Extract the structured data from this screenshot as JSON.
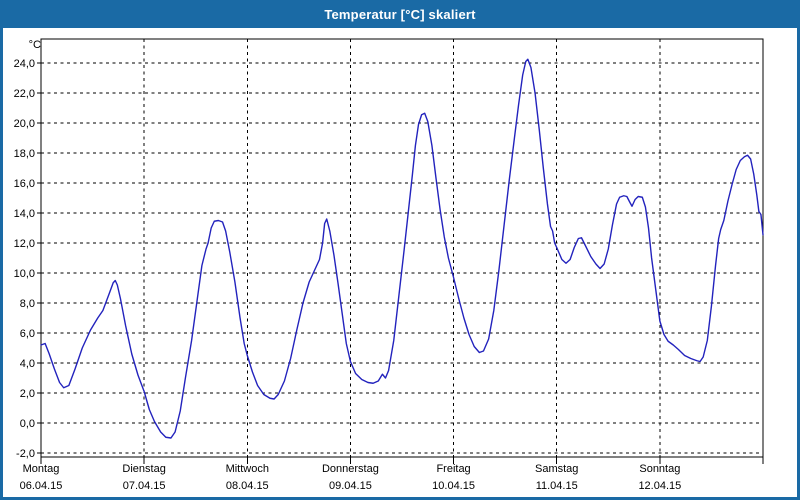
{
  "window": {
    "title": "Temperatur [°C] skaliert",
    "title_bar_color": "#1a6aa5",
    "border_color": "#1a6aa5",
    "background": "#ffffff"
  },
  "colors": {
    "grid": "#000000",
    "axis": "#000000",
    "text": "#000000",
    "line": "#2323bd"
  },
  "chart_data": {
    "type": "line",
    "title": "Temperatur [°C] skaliert",
    "y_unit_label": "°C",
    "ylim": [
      -2.0,
      24.0
    ],
    "y_tick_step": 2.0,
    "y_ticks": [
      -2,
      0,
      2,
      4,
      6,
      8,
      10,
      12,
      14,
      16,
      18,
      20,
      22,
      24
    ],
    "y_tick_labels": [
      "-2,0",
      "0,0",
      "2,0",
      "4,0",
      "6,0",
      "8,0",
      "10,0",
      "12,0",
      "14,0",
      "16,0",
      "18,0",
      "20,0",
      "22,0",
      "24,0"
    ],
    "grid": "dashed",
    "legend_position": "none",
    "x_range_days": 7,
    "x_days": [
      {
        "name": "Montag",
        "date": "06.04.15"
      },
      {
        "name": "Dienstag",
        "date": "07.04.15"
      },
      {
        "name": "Mittwoch",
        "date": "08.04.15"
      },
      {
        "name": "Donnerstag",
        "date": "09.04.15"
      },
      {
        "name": "Freitag",
        "date": "10.04.15"
      },
      {
        "name": "Samstag",
        "date": "11.04.15"
      },
      {
        "name": "Sonntag",
        "date": "12.04.15"
      }
    ],
    "series": [
      {
        "name": "Temperatur [°C]",
        "color": "#2323bd",
        "points": [
          [
            0.0,
            5.2
          ],
          [
            0.04,
            5.3
          ],
          [
            0.08,
            4.6
          ],
          [
            0.13,
            3.6
          ],
          [
            0.18,
            2.7
          ],
          [
            0.22,
            2.35
          ],
          [
            0.27,
            2.5
          ],
          [
            0.33,
            3.6
          ],
          [
            0.4,
            5.0
          ],
          [
            0.48,
            6.2
          ],
          [
            0.55,
            7.0
          ],
          [
            0.6,
            7.5
          ],
          [
            0.66,
            8.6
          ],
          [
            0.7,
            9.35
          ],
          [
            0.72,
            9.5
          ],
          [
            0.74,
            9.2
          ],
          [
            0.77,
            8.3
          ],
          [
            0.82,
            6.5
          ],
          [
            0.88,
            4.6
          ],
          [
            0.94,
            3.2
          ],
          [
            1.0,
            2.1
          ],
          [
            1.05,
            0.9
          ],
          [
            1.1,
            0.1
          ],
          [
            1.16,
            -0.6
          ],
          [
            1.21,
            -0.95
          ],
          [
            1.26,
            -1.0
          ],
          [
            1.3,
            -0.6
          ],
          [
            1.35,
            0.8
          ],
          [
            1.4,
            3.0
          ],
          [
            1.46,
            5.5
          ],
          [
            1.52,
            8.5
          ],
          [
            1.56,
            10.5
          ],
          [
            1.6,
            11.6
          ],
          [
            1.62,
            12.0
          ],
          [
            1.65,
            13.0
          ],
          [
            1.68,
            13.45
          ],
          [
            1.72,
            13.5
          ],
          [
            1.76,
            13.4
          ],
          [
            1.79,
            12.8
          ],
          [
            1.83,
            11.4
          ],
          [
            1.88,
            9.4
          ],
          [
            1.93,
            7.0
          ],
          [
            1.97,
            5.3
          ],
          [
            2.0,
            4.5
          ],
          [
            2.05,
            3.4
          ],
          [
            2.1,
            2.5
          ],
          [
            2.16,
            1.9
          ],
          [
            2.22,
            1.65
          ],
          [
            2.26,
            1.6
          ],
          [
            2.3,
            1.9
          ],
          [
            2.36,
            2.8
          ],
          [
            2.42,
            4.3
          ],
          [
            2.48,
            6.2
          ],
          [
            2.54,
            8.0
          ],
          [
            2.6,
            9.4
          ],
          [
            2.66,
            10.3
          ],
          [
            2.7,
            10.9
          ],
          [
            2.73,
            12.0
          ],
          [
            2.75,
            13.3
          ],
          [
            2.77,
            13.6
          ],
          [
            2.8,
            12.8
          ],
          [
            2.84,
            11.2
          ],
          [
            2.88,
            9.3
          ],
          [
            2.92,
            7.3
          ],
          [
            2.96,
            5.3
          ],
          [
            3.0,
            4.1
          ],
          [
            3.05,
            3.3
          ],
          [
            3.11,
            2.9
          ],
          [
            3.17,
            2.7
          ],
          [
            3.22,
            2.65
          ],
          [
            3.27,
            2.8
          ],
          [
            3.31,
            3.25
          ],
          [
            3.34,
            3.0
          ],
          [
            3.37,
            3.5
          ],
          [
            3.42,
            5.5
          ],
          [
            3.47,
            8.5
          ],
          [
            3.52,
            11.5
          ],
          [
            3.56,
            14.0
          ],
          [
            3.6,
            16.5
          ],
          [
            3.63,
            18.5
          ],
          [
            3.66,
            19.9
          ],
          [
            3.69,
            20.55
          ],
          [
            3.72,
            20.65
          ],
          [
            3.75,
            20.1
          ],
          [
            3.79,
            18.5
          ],
          [
            3.83,
            16.3
          ],
          [
            3.87,
            14.2
          ],
          [
            3.91,
            12.4
          ],
          [
            3.95,
            11.0
          ],
          [
            4.0,
            9.7
          ],
          [
            4.05,
            8.3
          ],
          [
            4.1,
            7.0
          ],
          [
            4.15,
            5.9
          ],
          [
            4.2,
            5.1
          ],
          [
            4.25,
            4.7
          ],
          [
            4.29,
            4.8
          ],
          [
            4.34,
            5.6
          ],
          [
            4.39,
            7.5
          ],
          [
            4.44,
            10.2
          ],
          [
            4.49,
            13.2
          ],
          [
            4.54,
            16.2
          ],
          [
            4.59,
            19.0
          ],
          [
            4.63,
            21.2
          ],
          [
            4.67,
            23.2
          ],
          [
            4.7,
            24.1
          ],
          [
            4.72,
            24.25
          ],
          [
            4.75,
            23.7
          ],
          [
            4.79,
            22.0
          ],
          [
            4.83,
            19.6
          ],
          [
            4.87,
            17.0
          ],
          [
            4.91,
            14.6
          ],
          [
            4.94,
            13.1
          ],
          [
            4.96,
            12.8
          ],
          [
            4.98,
            12.0
          ],
          [
            5.0,
            11.7
          ],
          [
            5.05,
            10.9
          ],
          [
            5.09,
            10.65
          ],
          [
            5.13,
            10.9
          ],
          [
            5.17,
            11.7
          ],
          [
            5.21,
            12.3
          ],
          [
            5.24,
            12.35
          ],
          [
            5.28,
            11.8
          ],
          [
            5.33,
            11.1
          ],
          [
            5.38,
            10.6
          ],
          [
            5.42,
            10.3
          ],
          [
            5.46,
            10.6
          ],
          [
            5.5,
            11.6
          ],
          [
            5.54,
            13.2
          ],
          [
            5.58,
            14.6
          ],
          [
            5.61,
            15.05
          ],
          [
            5.65,
            15.15
          ],
          [
            5.68,
            15.1
          ],
          [
            5.71,
            14.7
          ],
          [
            5.73,
            14.45
          ],
          [
            5.76,
            14.9
          ],
          [
            5.79,
            15.1
          ],
          [
            5.83,
            15.05
          ],
          [
            5.86,
            14.4
          ],
          [
            5.89,
            13.0
          ],
          [
            5.92,
            11.0
          ],
          [
            5.96,
            8.9
          ],
          [
            6.0,
            6.8
          ],
          [
            6.04,
            5.9
          ],
          [
            6.08,
            5.45
          ],
          [
            6.13,
            5.2
          ],
          [
            6.18,
            4.9
          ],
          [
            6.24,
            4.5
          ],
          [
            6.3,
            4.3
          ],
          [
            6.36,
            4.15
          ],
          [
            6.39,
            4.1
          ],
          [
            6.42,
            4.4
          ],
          [
            6.46,
            5.5
          ],
          [
            6.5,
            7.8
          ],
          [
            6.54,
            10.5
          ],
          [
            6.57,
            12.3
          ],
          [
            6.59,
            12.9
          ],
          [
            6.62,
            13.5
          ],
          [
            6.66,
            14.8
          ],
          [
            6.7,
            15.9
          ],
          [
            6.74,
            16.9
          ],
          [
            6.78,
            17.5
          ],
          [
            6.82,
            17.75
          ],
          [
            6.85,
            17.85
          ],
          [
            6.88,
            17.6
          ],
          [
            6.91,
            16.6
          ],
          [
            6.94,
            15.2
          ],
          [
            6.96,
            14.1
          ],
          [
            6.98,
            13.9
          ],
          [
            7.0,
            12.55
          ]
        ]
      }
    ]
  }
}
